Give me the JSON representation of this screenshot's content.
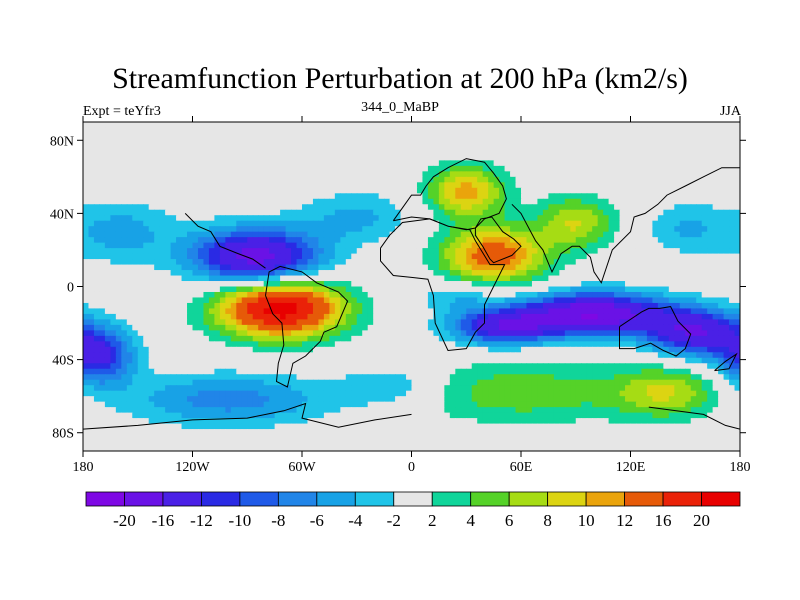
{
  "chart_data": {
    "type": "heatmap",
    "title": "Streamfunction Perturbation at 200 hPa (km2/s)",
    "left_label": "Expt = teYfr3",
    "center_label": "344_0_MaBP",
    "right_label": "JJA",
    "xlim": [
      -180,
      180
    ],
    "ylim": [
      -90,
      90
    ],
    "x_ticks": [
      {
        "value": -180,
        "label": "180"
      },
      {
        "value": -120,
        "label": "120W"
      },
      {
        "value": -60,
        "label": "60W"
      },
      {
        "value": 0,
        "label": "0"
      },
      {
        "value": 60,
        "label": "60E"
      },
      {
        "value": 120,
        "label": "120E"
      },
      {
        "value": 180,
        "label": "180"
      }
    ],
    "y_ticks": [
      {
        "value": 80,
        "label": "80N"
      },
      {
        "value": 40,
        "label": "40N"
      },
      {
        "value": 0,
        "label": "0"
      },
      {
        "value": -40,
        "label": "40S"
      },
      {
        "value": -80,
        "label": "80S"
      }
    ],
    "colorbar": {
      "levels": [
        "-20",
        "-16",
        "-12",
        "-10",
        "-8",
        "-6",
        "-4",
        "-2",
        "2",
        "4",
        "6",
        "8",
        "10",
        "12",
        "16",
        "20"
      ],
      "colors": [
        "#7e08e4",
        "#6a12e6",
        "#4a20e6",
        "#2a2ae4",
        "#1f5ae8",
        "#2185e8",
        "#18a2e6",
        "#20c4e8",
        "#e6e6e6",
        "#10d59a",
        "#55d228",
        "#a6dc14",
        "#dcd412",
        "#eaa40c",
        "#e65a08",
        "#ea2208",
        "#e80000"
      ]
    },
    "anomalies": [
      {
        "lon": -85,
        "lat": 16,
        "value": -18,
        "sx": 24,
        "sy": 11
      },
      {
        "lon": -160,
        "lat": 30,
        "value": -5,
        "sx": 22,
        "sy": 12
      },
      {
        "lon": -30,
        "lat": 38,
        "value": -4.5,
        "sx": 22,
        "sy": 10
      },
      {
        "lon": -172,
        "lat": -38,
        "value": -13,
        "sx": 14,
        "sy": 11
      },
      {
        "lon": -100,
        "lat": -62,
        "value": -7,
        "sx": 40,
        "sy": 10
      },
      {
        "lon": -10,
        "lat": -55,
        "value": -4.5,
        "sx": 20,
        "sy": 8
      },
      {
        "lon": 100,
        "lat": -15,
        "value": -20,
        "sx": 28,
        "sy": 8
      },
      {
        "lon": 50,
        "lat": -22,
        "value": -14,
        "sx": 20,
        "sy": 7
      },
      {
        "lon": 155,
        "lat": -25,
        "value": -15,
        "sx": 18,
        "sy": 9
      },
      {
        "lon": 25,
        "lat": -5,
        "value": -4,
        "sx": 15,
        "sy": 6
      },
      {
        "lon": 150,
        "lat": 32,
        "value": -4,
        "sx": 15,
        "sy": 10
      },
      {
        "lon": -72,
        "lat": -12,
        "value": 22,
        "sx": 24,
        "sy": 11
      },
      {
        "lon": 45,
        "lat": 17,
        "value": 14,
        "sx": 20,
        "sy": 11
      },
      {
        "lon": 30,
        "lat": 52,
        "value": 11,
        "sx": 15,
        "sy": 10
      },
      {
        "lon": 90,
        "lat": 35,
        "value": 8,
        "sx": 15,
        "sy": 10
      },
      {
        "lon": 60,
        "lat": -58,
        "value": 5.5,
        "sx": 45,
        "sy": 12
      },
      {
        "lon": 140,
        "lat": -58,
        "value": 7.5,
        "sx": 20,
        "sy": 10
      }
    ]
  }
}
